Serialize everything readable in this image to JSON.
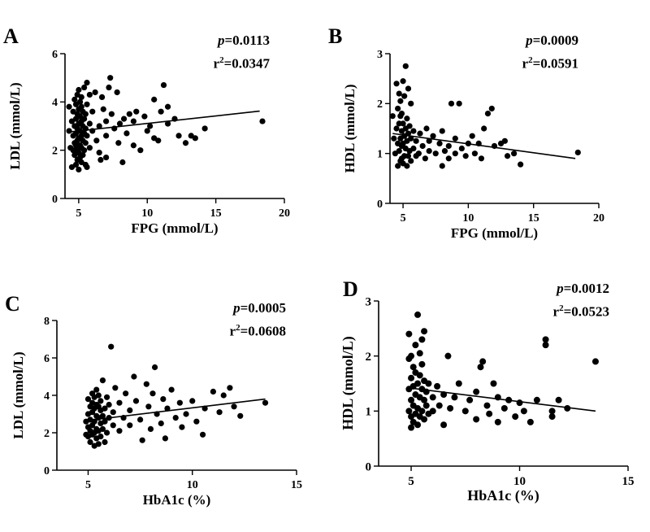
{
  "colors": {
    "points": "#000000",
    "fit_line": "#000000",
    "axes": "#000000",
    "background": "#ffffff"
  },
  "chart_data": [
    {
      "panel": "A",
      "type": "scatter",
      "xlabel": "FPG (mmol/L)",
      "ylabel": "LDL (mmol/L)",
      "xlim": [
        4,
        20
      ],
      "ylim": [
        0,
        6
      ],
      "xticks": [
        "5",
        "10",
        "15",
        "20"
      ],
      "yticks": [
        "0",
        "2",
        "4",
        "6"
      ],
      "stats": {
        "p_label": "p",
        "p_value": "=0.0113",
        "r2_label": "r",
        "r2_exp": "2",
        "r2_value": "=0.0347"
      },
      "fit": [
        [
          4.2,
          2.75
        ],
        [
          18.2,
          3.62
        ]
      ],
      "points": [
        [
          4.3,
          3.8
        ],
        [
          4.3,
          2.8
        ],
        [
          4.4,
          2.1
        ],
        [
          4.5,
          1.3
        ],
        [
          4.5,
          3.2
        ],
        [
          4.6,
          2.0
        ],
        [
          4.6,
          2.6
        ],
        [
          4.6,
          3.6
        ],
        [
          4.7,
          1.8
        ],
        [
          4.7,
          2.3
        ],
        [
          4.7,
          3.0
        ],
        [
          4.7,
          4.1
        ],
        [
          4.8,
          1.4
        ],
        [
          4.8,
          2.2
        ],
        [
          4.8,
          2.7
        ],
        [
          4.8,
          3.3
        ],
        [
          4.8,
          3.9
        ],
        [
          4.9,
          1.6
        ],
        [
          4.9,
          2.0
        ],
        [
          4.9,
          2.4
        ],
        [
          4.9,
          2.9
        ],
        [
          4.9,
          3.5
        ],
        [
          4.9,
          4.3
        ],
        [
          5.0,
          1.2
        ],
        [
          5.0,
          1.9
        ],
        [
          5.0,
          2.5
        ],
        [
          5.0,
          3.1
        ],
        [
          5.0,
          3.7
        ],
        [
          5.0,
          4.5
        ],
        [
          5.1,
          1.7
        ],
        [
          5.1,
          2.2
        ],
        [
          5.1,
          2.8
        ],
        [
          5.1,
          3.4
        ],
        [
          5.1,
          4.0
        ],
        [
          5.2,
          1.5
        ],
        [
          5.2,
          2.1
        ],
        [
          5.2,
          2.6
        ],
        [
          5.2,
          3.2
        ],
        [
          5.2,
          3.8
        ],
        [
          5.2,
          4.2
        ],
        [
          5.3,
          1.8
        ],
        [
          5.3,
          2.4
        ],
        [
          5.3,
          3.0
        ],
        [
          5.3,
          3.6
        ],
        [
          5.4,
          2.0
        ],
        [
          5.4,
          2.7
        ],
        [
          5.4,
          3.3
        ],
        [
          5.4,
          4.6
        ],
        [
          5.5,
          1.4
        ],
        [
          5.5,
          2.3
        ],
        [
          5.5,
          2.9
        ],
        [
          5.5,
          3.5
        ],
        [
          5.6,
          1.3
        ],
        [
          5.6,
          2.6
        ],
        [
          5.6,
          3.9
        ],
        [
          5.6,
          4.8
        ],
        [
          5.8,
          2.1
        ],
        [
          5.8,
          3.1
        ],
        [
          5.8,
          4.3
        ],
        [
          6.0,
          2.8
        ],
        [
          6.0,
          3.6
        ],
        [
          6.2,
          4.4
        ],
        [
          6.3,
          2.4
        ],
        [
          6.5,
          1.9
        ],
        [
          6.5,
          3.0
        ],
        [
          6.6,
          1.6
        ],
        [
          6.7,
          4.2
        ],
        [
          6.8,
          3.7
        ],
        [
          7.0,
          2.6
        ],
        [
          7.0,
          3.2
        ],
        [
          7.0,
          1.7
        ],
        [
          7.2,
          4.6
        ],
        [
          7.3,
          5.0
        ],
        [
          7.4,
          3.5
        ],
        [
          7.6,
          2.9
        ],
        [
          7.8,
          4.4
        ],
        [
          7.9,
          2.3
        ],
        [
          8.0,
          3.1
        ],
        [
          8.2,
          1.5
        ],
        [
          8.3,
          3.3
        ],
        [
          8.5,
          2.7
        ],
        [
          8.7,
          3.5
        ],
        [
          9.0,
          2.2
        ],
        [
          9.0,
          3.2
        ],
        [
          9.2,
          3.6
        ],
        [
          9.5,
          2.0
        ],
        [
          9.8,
          3.4
        ],
        [
          10.0,
          2.8
        ],
        [
          10.2,
          3.0
        ],
        [
          10.5,
          2.5
        ],
        [
          10.5,
          4.1
        ],
        [
          10.8,
          2.4
        ],
        [
          11.0,
          3.6
        ],
        [
          11.2,
          4.7
        ],
        [
          11.5,
          3.8
        ],
        [
          11.5,
          3.1
        ],
        [
          12.0,
          3.3
        ],
        [
          12.3,
          2.6
        ],
        [
          12.8,
          2.3
        ],
        [
          13.2,
          2.6
        ],
        [
          13.5,
          2.5
        ],
        [
          14.2,
          2.9
        ],
        [
          18.4,
          3.2
        ]
      ]
    },
    {
      "panel": "B",
      "type": "scatter",
      "xlabel": "FPG (mmol/L)",
      "ylabel": "HDL (mmol/L)",
      "xlim": [
        4,
        20
      ],
      "ylim": [
        0,
        3
      ],
      "xticks": [
        "5",
        "10",
        "15",
        "20"
      ],
      "yticks": [
        "0",
        "1",
        "2",
        "3"
      ],
      "stats": {
        "p_label": "p",
        "p_value": "=0.0009",
        "r2_label": "r",
        "r2_exp": "2",
        "r2_value": "=0.0591"
      },
      "fit": [
        [
          4.2,
          1.4
        ],
        [
          18.2,
          0.9
        ]
      ],
      "points": [
        [
          4.2,
          1.75
        ],
        [
          4.3,
          1.3
        ],
        [
          4.4,
          1.0
        ],
        [
          4.5,
          1.5
        ],
        [
          4.5,
          2.4
        ],
        [
          4.6,
          0.75
        ],
        [
          4.6,
          1.2
        ],
        [
          4.6,
          1.9
        ],
        [
          4.7,
          1.05
        ],
        [
          4.7,
          1.6
        ],
        [
          4.7,
          2.2
        ],
        [
          4.8,
          0.85
        ],
        [
          4.8,
          1.3
        ],
        [
          4.8,
          1.75
        ],
        [
          4.8,
          2.05
        ],
        [
          4.9,
          0.9
        ],
        [
          4.9,
          1.15
        ],
        [
          4.9,
          1.45
        ],
        [
          4.9,
          1.8
        ],
        [
          5.0,
          0.8
        ],
        [
          5.0,
          1.2
        ],
        [
          5.0,
          1.6
        ],
        [
          5.0,
          2.45
        ],
        [
          5.1,
          0.95
        ],
        [
          5.1,
          1.35
        ],
        [
          5.1,
          2.15
        ],
        [
          5.2,
          1.1
        ],
        [
          5.2,
          1.5
        ],
        [
          5.2,
          2.75
        ],
        [
          5.3,
          0.75
        ],
        [
          5.3,
          1.25
        ],
        [
          5.3,
          1.7
        ],
        [
          5.4,
          0.95
        ],
        [
          5.4,
          1.4
        ],
        [
          5.4,
          2.3
        ],
        [
          5.5,
          1.05
        ],
        [
          5.5,
          1.55
        ],
        [
          5.6,
          0.85
        ],
        [
          5.6,
          1.3
        ],
        [
          5.6,
          2.0
        ],
        [
          5.8,
          1.1
        ],
        [
          5.8,
          1.45
        ],
        [
          6.0,
          0.95
        ],
        [
          6.0,
          1.25
        ],
        [
          6.2,
          1.0
        ],
        [
          6.3,
          1.4
        ],
        [
          6.5,
          1.15
        ],
        [
          6.7,
          0.9
        ],
        [
          6.8,
          1.5
        ],
        [
          7.0,
          1.05
        ],
        [
          7.0,
          1.25
        ],
        [
          7.3,
          1.35
        ],
        [
          7.5,
          1.0
        ],
        [
          7.8,
          1.2
        ],
        [
          8.0,
          1.45
        ],
        [
          8.0,
          0.75
        ],
        [
          8.2,
          1.05
        ],
        [
          8.5,
          1.15
        ],
        [
          8.5,
          0.9
        ],
        [
          8.7,
          2.0
        ],
        [
          9.0,
          1.3
        ],
        [
          9.0,
          1.0
        ],
        [
          9.3,
          2.0
        ],
        [
          9.5,
          1.1
        ],
        [
          9.8,
          0.95
        ],
        [
          10.0,
          1.2
        ],
        [
          10.3,
          1.35
        ],
        [
          10.5,
          1.0
        ],
        [
          10.8,
          1.2
        ],
        [
          11.0,
          0.9
        ],
        [
          11.2,
          1.5
        ],
        [
          11.5,
          1.8
        ],
        [
          11.8,
          1.9
        ],
        [
          12.0,
          1.15
        ],
        [
          12.5,
          1.2
        ],
        [
          12.8,
          1.25
        ],
        [
          13.0,
          0.95
        ],
        [
          13.5,
          1.0
        ],
        [
          14.0,
          0.78
        ],
        [
          18.4,
          1.02
        ]
      ]
    },
    {
      "panel": "C",
      "type": "scatter",
      "xlabel": "HbA1c (%)",
      "ylabel": "LDL (mmol/L)",
      "xlim": [
        3.5,
        15
      ],
      "ylim": [
        0,
        8
      ],
      "xticks": [
        "5",
        "10",
        "15"
      ],
      "yticks": [
        "0",
        "2",
        "4",
        "6",
        "8"
      ],
      "stats": {
        "p_label": "p",
        "p_value": "=0.0005",
        "r2_label": "r",
        "r2_exp": "2",
        "r2_value": "=0.0608"
      },
      "fit": [
        [
          4.9,
          2.65
        ],
        [
          13.5,
          3.8
        ]
      ],
      "points": [
        [
          4.9,
          1.9
        ],
        [
          4.9,
          2.6
        ],
        [
          5.0,
          1.8
        ],
        [
          5.0,
          2.3
        ],
        [
          5.0,
          3.0
        ],
        [
          5.0,
          3.8
        ],
        [
          5.1,
          1.5
        ],
        [
          5.1,
          2.1
        ],
        [
          5.1,
          2.7
        ],
        [
          5.1,
          3.4
        ],
        [
          5.2,
          1.9
        ],
        [
          5.2,
          2.4
        ],
        [
          5.2,
          3.1
        ],
        [
          5.2,
          3.6
        ],
        [
          5.2,
          4.1
        ],
        [
          5.3,
          1.3
        ],
        [
          5.3,
          2.0
        ],
        [
          5.3,
          2.6
        ],
        [
          5.3,
          3.3
        ],
        [
          5.3,
          3.9
        ],
        [
          5.4,
          1.7
        ],
        [
          5.4,
          2.2
        ],
        [
          5.4,
          2.9
        ],
        [
          5.4,
          3.5
        ],
        [
          5.4,
          4.3
        ],
        [
          5.5,
          1.4
        ],
        [
          5.5,
          2.1
        ],
        [
          5.5,
          2.8
        ],
        [
          5.5,
          3.4
        ],
        [
          5.5,
          4.0
        ],
        [
          5.6,
          1.8
        ],
        [
          5.6,
          2.5
        ],
        [
          5.6,
          3.2
        ],
        [
          5.6,
          3.7
        ],
        [
          5.7,
          2.2
        ],
        [
          5.7,
          2.9
        ],
        [
          5.7,
          4.8
        ],
        [
          5.8,
          1.5
        ],
        [
          5.8,
          2.6
        ],
        [
          5.8,
          3.3
        ],
        [
          5.9,
          2.0
        ],
        [
          5.9,
          3.9
        ],
        [
          6.0,
          2.8
        ],
        [
          6.0,
          3.5
        ],
        [
          6.1,
          6.6
        ],
        [
          6.2,
          2.4
        ],
        [
          6.2,
          3.1
        ],
        [
          6.3,
          4.4
        ],
        [
          6.5,
          2.1
        ],
        [
          6.5,
          3.6
        ],
        [
          6.7,
          2.8
        ],
        [
          6.8,
          4.1
        ],
        [
          7.0,
          3.2
        ],
        [
          7.0,
          2.4
        ],
        [
          7.2,
          5.0
        ],
        [
          7.3,
          3.7
        ],
        [
          7.5,
          2.7
        ],
        [
          7.6,
          1.6
        ],
        [
          7.8,
          4.6
        ],
        [
          7.9,
          3.4
        ],
        [
          8.0,
          2.2
        ],
        [
          8.1,
          4.1
        ],
        [
          8.2,
          5.5
        ],
        [
          8.3,
          3.0
        ],
        [
          8.5,
          2.5
        ],
        [
          8.6,
          3.8
        ],
        [
          8.7,
          1.7
        ],
        [
          8.8,
          3.3
        ],
        [
          9.0,
          4.3
        ],
        [
          9.2,
          2.8
        ],
        [
          9.4,
          3.6
        ],
        [
          9.5,
          2.3
        ],
        [
          9.7,
          3.0
        ],
        [
          10.0,
          3.7
        ],
        [
          10.2,
          2.6
        ],
        [
          10.5,
          1.9
        ],
        [
          10.6,
          3.3
        ],
        [
          11.0,
          4.2
        ],
        [
          11.3,
          3.1
        ],
        [
          11.5,
          4.0
        ],
        [
          11.8,
          4.4
        ],
        [
          12.0,
          3.4
        ],
        [
          12.3,
          2.9
        ],
        [
          13.5,
          3.6
        ]
      ]
    },
    {
      "panel": "D",
      "type": "scatter",
      "xlabel": "HbA1c (%)",
      "ylabel": "HDL (mmol/L)",
      "xlim": [
        3.5,
        15
      ],
      "ylim": [
        0,
        3
      ],
      "xticks": [
        "5",
        "10",
        "15"
      ],
      "yticks": [
        "0",
        "1",
        "2",
        "3"
      ],
      "stats": {
        "p_label": "p",
        "p_value": "=0.0012",
        "r2_label": "r",
        "r2_exp": "2",
        "r2_value": "=0.0523"
      },
      "fit": [
        [
          4.9,
          1.42
        ],
        [
          13.5,
          1.0
        ]
      ],
      "points": [
        [
          4.9,
          1.0
        ],
        [
          4.9,
          1.4
        ],
        [
          4.9,
          1.95
        ],
        [
          4.9,
          2.4
        ],
        [
          5.0,
          0.7
        ],
        [
          5.0,
          0.9
        ],
        [
          5.0,
          1.2
        ],
        [
          5.0,
          1.6
        ],
        [
          5.0,
          2.0
        ],
        [
          5.1,
          0.8
        ],
        [
          5.1,
          1.1
        ],
        [
          5.1,
          1.45
        ],
        [
          5.1,
          1.8
        ],
        [
          5.2,
          0.95
        ],
        [
          5.2,
          1.3
        ],
        [
          5.2,
          1.7
        ],
        [
          5.2,
          2.2
        ],
        [
          5.3,
          0.75
        ],
        [
          5.3,
          1.05
        ],
        [
          5.3,
          1.5
        ],
        [
          5.3,
          2.75
        ],
        [
          5.4,
          0.9
        ],
        [
          5.4,
          1.25
        ],
        [
          5.4,
          1.65
        ],
        [
          5.4,
          2.05
        ],
        [
          5.5,
          1.0
        ],
        [
          5.5,
          1.4
        ],
        [
          5.5,
          1.85
        ],
        [
          5.5,
          2.3
        ],
        [
          5.6,
          0.85
        ],
        [
          5.6,
          1.2
        ],
        [
          5.6,
          1.55
        ],
        [
          5.6,
          2.45
        ],
        [
          5.7,
          1.1
        ],
        [
          5.7,
          1.35
        ],
        [
          5.8,
          0.95
        ],
        [
          5.8,
          1.5
        ],
        [
          6.0,
          1.25
        ],
        [
          6.0,
          1.0
        ],
        [
          6.2,
          1.45
        ],
        [
          6.3,
          1.1
        ],
        [
          6.5,
          0.75
        ],
        [
          6.5,
          1.3
        ],
        [
          6.7,
          2.0
        ],
        [
          6.8,
          1.05
        ],
        [
          7.0,
          1.25
        ],
        [
          7.2,
          1.5
        ],
        [
          7.5,
          1.0
        ],
        [
          7.7,
          1.2
        ],
        [
          8.0,
          0.85
        ],
        [
          8.0,
          1.35
        ],
        [
          8.2,
          1.8
        ],
        [
          8.3,
          1.9
        ],
        [
          8.5,
          1.1
        ],
        [
          8.6,
          0.95
        ],
        [
          8.8,
          1.5
        ],
        [
          9.0,
          1.25
        ],
        [
          9.0,
          0.8
        ],
        [
          9.3,
          1.05
        ],
        [
          9.5,
          1.2
        ],
        [
          9.8,
          0.9
        ],
        [
          10.0,
          1.15
        ],
        [
          10.2,
          1.0
        ],
        [
          10.5,
          0.8
        ],
        [
          10.8,
          1.2
        ],
        [
          11.2,
          2.3
        ],
        [
          11.2,
          2.2
        ],
        [
          11.5,
          0.9
        ],
        [
          11.5,
          1.0
        ],
        [
          11.8,
          1.2
        ],
        [
          12.2,
          1.05
        ],
        [
          13.5,
          1.9
        ]
      ]
    }
  ]
}
